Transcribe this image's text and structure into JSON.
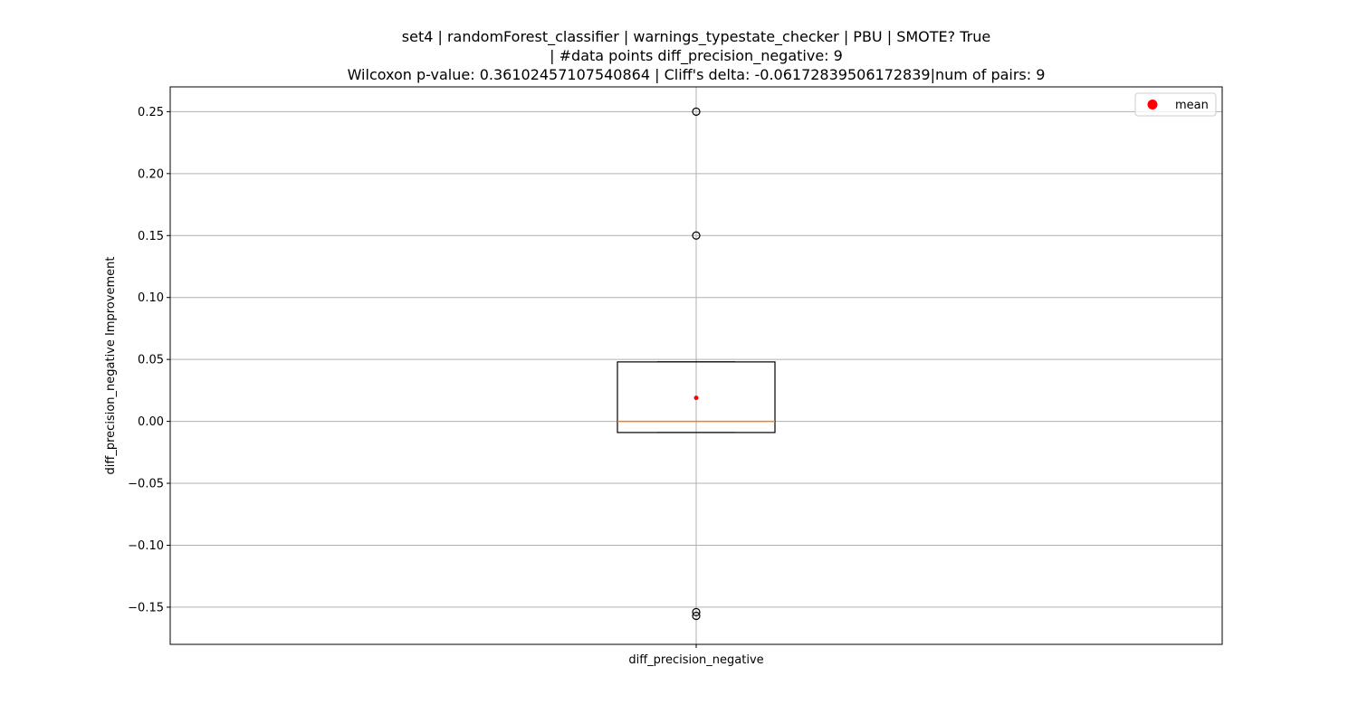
{
  "chart_data": {
    "type": "box",
    "title_lines": [
      "set4 | randomForest_classifier | warnings_typestate_checker | PBU | SMOTE? True",
      "| #data points diff_precision_negative: 9",
      "Wilcoxon p-value: 0.36102457107540864 | Cliff's delta: -0.06172839506172839|num of pairs: 9"
    ],
    "xlabel": "",
    "ylabel": "diff_precision_negative Improvement",
    "categories": [
      "diff_precision_negative"
    ],
    "ylim": [
      -0.18,
      0.27
    ],
    "yticks": [
      -0.15,
      -0.1,
      -0.05,
      0.0,
      0.05,
      0.1,
      0.15,
      0.2,
      0.25
    ],
    "ytick_labels": [
      "−0.15",
      "−0.10",
      "−0.05",
      "0.00",
      "0.05",
      "0.10",
      "0.15",
      "0.20",
      "0.25"
    ],
    "grid": true,
    "legend": {
      "position": "top-right",
      "entries": [
        {
          "label": "mean",
          "color": "#ff0000",
          "marker": "circle"
        }
      ]
    },
    "box": {
      "category": "diff_precision_negative",
      "q1": -0.009,
      "median": 0.0,
      "q3": 0.048,
      "whisker_low": -0.009,
      "whisker_high": 0.048,
      "mean": 0.019,
      "outliers": [
        0.25,
        0.15,
        -0.154,
        -0.157
      ]
    },
    "colors": {
      "box": "#000000",
      "median": "#ff7f0e",
      "mean": "#ff0000",
      "grid": "#b0b0b0",
      "outlier": "#000000"
    }
  }
}
